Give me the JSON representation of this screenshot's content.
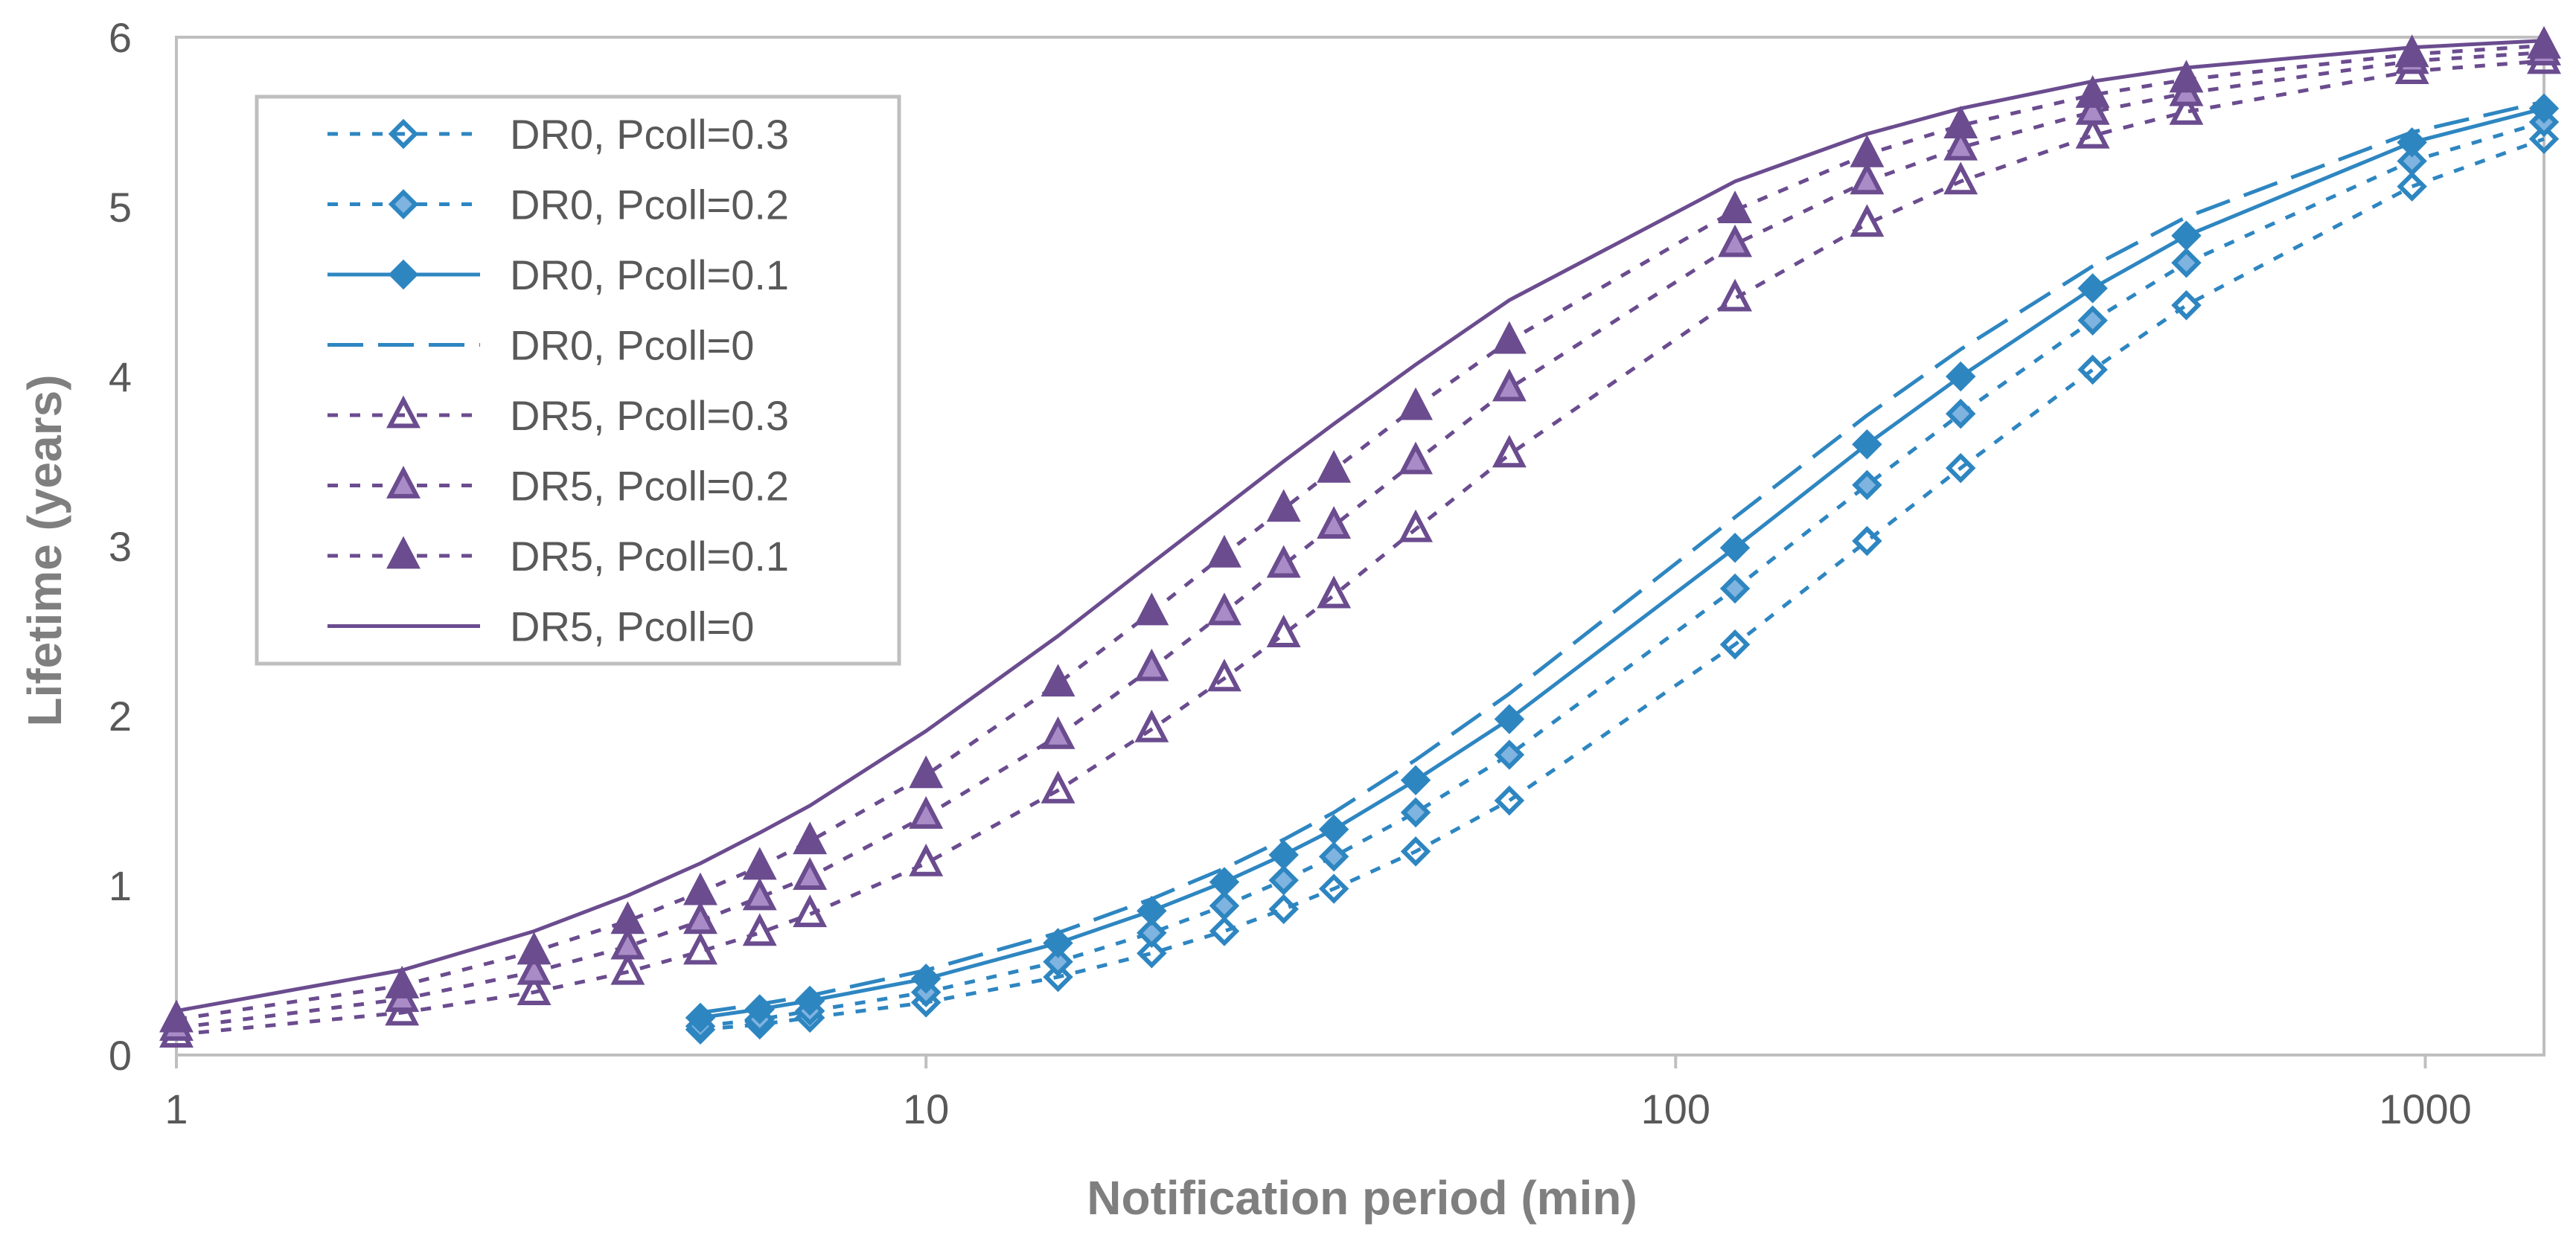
{
  "chart_data": {
    "type": "line",
    "title": "",
    "xlabel": "Notification period (min)",
    "ylabel": "Lifetime (years)",
    "xscale": "log",
    "xlim": [
      1,
      1440
    ],
    "ylim": [
      0,
      6
    ],
    "xticks": [
      1,
      10,
      100,
      1000
    ],
    "xtick_labels": [
      "1",
      "10",
      "100",
      "1000"
    ],
    "yticks": [
      0,
      1,
      2,
      3,
      4,
      5,
      6
    ],
    "ytick_labels": [
      "0",
      "1",
      "2",
      "3",
      "4",
      "5",
      "6"
    ],
    "grid": false,
    "legend_position": "top-left",
    "colors": {
      "dr0": "#2e86c1",
      "dr5": "#6b4c8f",
      "dr0_light": "#7fb3e0",
      "dr5_light": "#a98cc7"
    },
    "series": [
      {
        "name": "DR0, Pcoll=0.3",
        "style": "dotted",
        "color": "#2e86c1",
        "marker": "diamond",
        "fill": "none",
        "x": [
          5,
          6,
          7,
          10,
          15,
          20,
          25,
          30,
          35,
          45,
          60,
          120,
          180,
          240,
          360,
          480,
          960,
          1440
        ],
        "y": [
          0.15,
          0.18,
          0.22,
          0.31,
          0.46,
          0.6,
          0.73,
          0.86,
          0.98,
          1.2,
          1.5,
          2.42,
          3.03,
          3.46,
          4.04,
          4.42,
          5.12,
          5.4
        ]
      },
      {
        "name": "DR0, Pcoll=0.2",
        "style": "dotted",
        "color": "#2e86c1",
        "marker": "diamond",
        "fill": "#7fb3e0",
        "x": [
          5,
          6,
          7,
          10,
          15,
          20,
          25,
          30,
          35,
          45,
          60,
          120,
          180,
          240,
          360,
          480,
          960,
          1440
        ],
        "y": [
          0.17,
          0.21,
          0.26,
          0.37,
          0.55,
          0.72,
          0.88,
          1.03,
          1.17,
          1.43,
          1.77,
          2.75,
          3.36,
          3.78,
          4.33,
          4.67,
          5.27,
          5.5
        ]
      },
      {
        "name": "DR0, Pcoll=0.1",
        "style": "solid",
        "color": "#2e86c1",
        "marker": "diamond",
        "fill": "#2e86c1",
        "x": [
          5,
          6,
          7,
          10,
          15,
          20,
          25,
          30,
          35,
          45,
          60,
          120,
          180,
          240,
          360,
          480,
          960,
          1440
        ],
        "y": [
          0.22,
          0.27,
          0.32,
          0.45,
          0.66,
          0.85,
          1.02,
          1.18,
          1.33,
          1.62,
          1.98,
          2.99,
          3.6,
          4.0,
          4.52,
          4.83,
          5.38,
          5.58
        ]
      },
      {
        "name": "DR0, Pcoll=0",
        "style": "dashed",
        "color": "#2e86c1",
        "marker": "none",
        "fill": "none",
        "x": [
          5,
          6,
          7,
          10,
          15,
          20,
          25,
          30,
          35,
          45,
          60,
          120,
          180,
          240,
          360,
          480,
          960,
          1440
        ],
        "y": [
          0.25,
          0.3,
          0.35,
          0.5,
          0.72,
          0.92,
          1.1,
          1.27,
          1.43,
          1.74,
          2.13,
          3.17,
          3.77,
          4.16,
          4.65,
          4.94,
          5.44,
          5.62
        ]
      },
      {
        "name": "DR5, Pcoll=0.3",
        "style": "dotted",
        "color": "#6b4c8f",
        "marker": "triangle",
        "fill": "none",
        "x": [
          1,
          2,
          3,
          4,
          5,
          6,
          7,
          10,
          15,
          20,
          25,
          30,
          35,
          45,
          60,
          120,
          180,
          240,
          360,
          480,
          960,
          1440
        ],
        "y": [
          0.12,
          0.25,
          0.37,
          0.49,
          0.61,
          0.72,
          0.83,
          1.13,
          1.56,
          1.92,
          2.22,
          2.48,
          2.71,
          3.1,
          3.54,
          4.46,
          4.9,
          5.15,
          5.42,
          5.56,
          5.8,
          5.86
        ]
      },
      {
        "name": "DR5, Pcoll=0.2",
        "style": "dotted",
        "color": "#6b4c8f",
        "marker": "triangle",
        "fill": "#a98cc7",
        "x": [
          1,
          2,
          3,
          4,
          5,
          6,
          7,
          10,
          15,
          20,
          25,
          30,
          35,
          45,
          60,
          120,
          180,
          240,
          360,
          480,
          960,
          1440
        ],
        "y": [
          0.16,
          0.33,
          0.49,
          0.64,
          0.79,
          0.93,
          1.05,
          1.41,
          1.88,
          2.28,
          2.61,
          2.89,
          3.12,
          3.5,
          3.93,
          4.78,
          5.15,
          5.35,
          5.56,
          5.67,
          5.86,
          5.91
        ]
      },
      {
        "name": "DR5, Pcoll=0.1",
        "style": "dotted",
        "color": "#6b4c8f",
        "marker": "triangle",
        "fill": "#6b4c8f",
        "x": [
          1,
          2,
          3,
          4,
          5,
          6,
          7,
          10,
          15,
          20,
          25,
          30,
          35,
          45,
          60,
          120,
          180,
          240,
          360,
          480,
          960,
          1440
        ],
        "y": [
          0.21,
          0.41,
          0.61,
          0.79,
          0.96,
          1.11,
          1.26,
          1.65,
          2.19,
          2.61,
          2.95,
          3.22,
          3.45,
          3.82,
          4.21,
          4.98,
          5.31,
          5.48,
          5.66,
          5.75,
          5.9,
          5.95
        ]
      },
      {
        "name": "DR5, Pcoll=0",
        "style": "solid",
        "color": "#6b4c8f",
        "marker": "none",
        "fill": "none",
        "x": [
          1,
          2,
          3,
          4,
          5,
          6,
          7,
          10,
          15,
          20,
          25,
          30,
          35,
          45,
          60,
          120,
          180,
          240,
          360,
          480,
          960,
          1440
        ],
        "y": [
          0.26,
          0.5,
          0.73,
          0.94,
          1.13,
          1.31,
          1.47,
          1.91,
          2.47,
          2.9,
          3.23,
          3.5,
          3.72,
          4.07,
          4.45,
          5.15,
          5.43,
          5.58,
          5.74,
          5.82,
          5.94,
          5.98
        ]
      }
    ]
  }
}
